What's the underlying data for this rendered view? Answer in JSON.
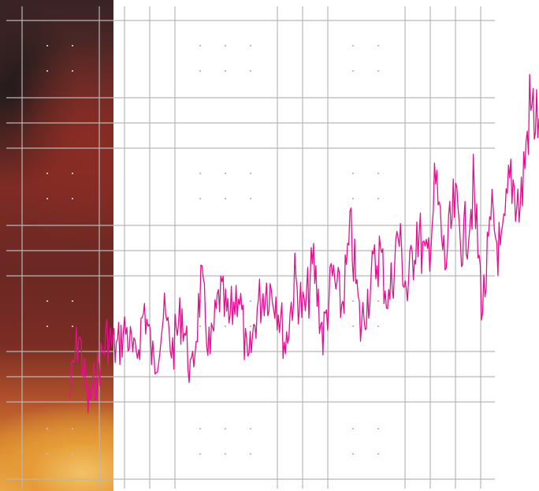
{
  "chart_data": {
    "type": "line",
    "title": "",
    "xlabel": "",
    "ylabel": "",
    "grid": true,
    "xlim": [
      0,
      500
    ],
    "ylim": [
      0,
      100
    ],
    "series": [
      {
        "color": "#e3108f",
        "x": [
          0,
          10,
          20,
          30,
          40,
          50,
          60,
          70,
          80,
          90,
          100,
          110,
          120,
          130,
          140,
          150,
          160,
          170,
          180,
          190,
          200,
          210,
          220,
          230,
          240,
          250,
          260,
          270,
          280,
          290,
          300,
          310,
          320,
          330,
          340,
          350,
          360,
          370,
          380,
          390,
          400,
          410,
          420,
          430,
          440,
          450,
          460,
          470,
          480,
          490,
          500
        ],
        "values": [
          14,
          29,
          12,
          20,
          28,
          25,
          30,
          22,
          35,
          21,
          33,
          25,
          34,
          18,
          40,
          24,
          38,
          31,
          40,
          20,
          35,
          40,
          38,
          26,
          41,
          33,
          45,
          28,
          42,
          35,
          52,
          30,
          40,
          48,
          36,
          52,
          38,
          54,
          44,
          63,
          45,
          58,
          50,
          62,
          35,
          55,
          46,
          66,
          58,
          81,
          79
        ]
      }
    ]
  }
}
